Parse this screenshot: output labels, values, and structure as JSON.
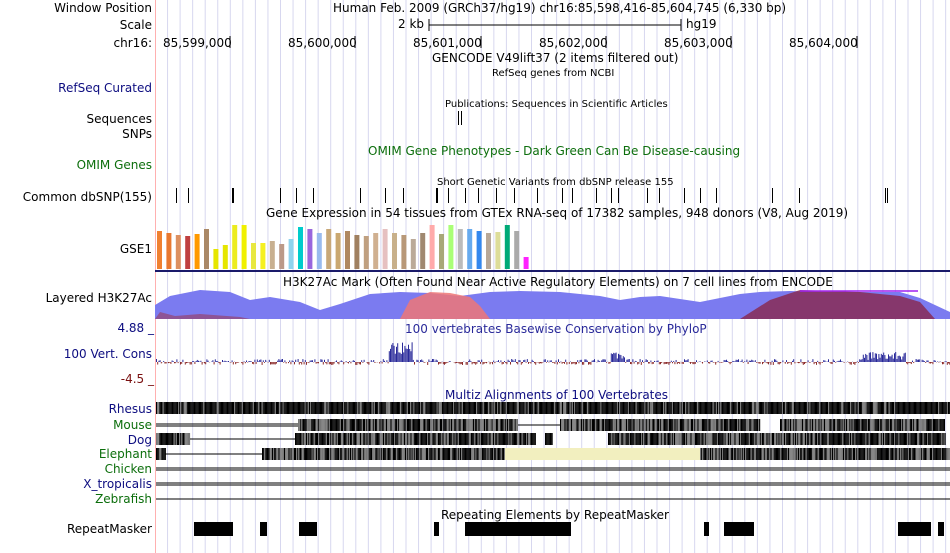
{
  "header": {
    "window_position_label": "Window Position",
    "window_position_value": "Human Feb. 2009 (GRCh37/hg19)   chr16:85,598,416-85,604,745 (6,330 bp)",
    "scale_label": "Scale",
    "scale_value": "2 kb",
    "scale_assembly": "hg19",
    "chrom_label": "chr16:",
    "ticks": [
      "85,599,000",
      "85,600,000",
      "85,601,000",
      "85,602,000",
      "85,603,000",
      "85,604,000"
    ]
  },
  "tracks": {
    "gencode_title": "GENCODE V49lift37 (2 items filtered out)",
    "refseq_title": "RefSeq genes from NCBI",
    "refseq_label": "RefSeq Curated",
    "publications_title": "Publications: Sequences in Scientific Articles",
    "sequences_label": "Sequences",
    "snps_label": "SNPs",
    "omim_title": "OMIM Gene Phenotypes - Dark Green Can Be Disease-causing",
    "omim_label": "OMIM Genes",
    "dbsnp_title": "Short Genetic Variants from dbSNP release 155",
    "dbsnp_label": "Common dbSNP(155)",
    "gtex_title": "Gene Expression in 54 tissues from GTEx RNA-seq of 17382 samples, 948 donors (V8, Aug 2019)",
    "gtex_label": "GSE1",
    "h3k27ac_title": "H3K27Ac Mark (Often Found Near Active Regulatory Elements) on 7 cell lines from ENCODE",
    "h3k27ac_label": "Layered H3K27Ac",
    "phylop_title": "100 vertebrates Basewise Conservation by PhyloP",
    "phylop_label": "100 Vert. Cons",
    "phylop_max": "4.88 _",
    "phylop_min": "-4.5 _",
    "multiz_title": "Multiz Alignments of 100 Vertebrates",
    "species": [
      "Rhesus",
      "Mouse",
      "Dog",
      "Elephant",
      "Chicken",
      "X_tropicalis",
      "Zebrafish"
    ],
    "repeat_title": "Repeating Elements by RepeatMasker",
    "repeat_label": "RepeatMasker"
  },
  "colors": {
    "label_blue": "#0d0d80",
    "label_green": "#0c6e0c",
    "omim_title": "#0c6e0c",
    "phylop_title": "#2a2a9a",
    "h3k27ac_blue": "#7b7bf0",
    "h3k27ac_maroon": "#8a2040",
    "phylop_pos": "#2a2a9a",
    "phylop_neg": "#8b2a2a",
    "elephant_gap": "#f2efbf"
  },
  "gtex_bars": [
    {
      "color": "#f08030",
      "value": 38
    },
    {
      "color": "#e87830",
      "value": 36
    },
    {
      "color": "#dd9060",
      "value": 34
    },
    {
      "color": "#c04040",
      "value": 33
    },
    {
      "color": "#ff9900",
      "value": 35
    },
    {
      "color": "#aa8866",
      "value": 40
    },
    {
      "color": "#e6e600",
      "value": 20
    },
    {
      "color": "#e6e600",
      "value": 24
    },
    {
      "color": "#ecec20",
      "value": 44
    },
    {
      "color": "#f0f000",
      "value": 44
    },
    {
      "color": "#e8e840",
      "value": 26
    },
    {
      "color": "#f5f020",
      "value": 26
    },
    {
      "color": "#c8b090",
      "value": 28
    },
    {
      "color": "#bb9988",
      "value": 25
    },
    {
      "color": "#8fd3ee",
      "value": 30
    },
    {
      "color": "#00cccc",
      "value": 42
    },
    {
      "color": "#9966dd",
      "value": 40
    },
    {
      "color": "#99bbee",
      "value": 36
    },
    {
      "color": "#c8a878",
      "value": 40
    },
    {
      "color": "#caa870",
      "value": 36
    },
    {
      "color": "#b08860",
      "value": 38
    },
    {
      "color": "#a08060",
      "value": 34
    },
    {
      "color": "#c0a080",
      "value": 33
    },
    {
      "color": "#d0b090",
      "value": 36
    },
    {
      "color": "#e6c0c0",
      "value": 40
    },
    {
      "color": "#c8b08a",
      "value": 36
    },
    {
      "color": "#b89878",
      "value": 34
    },
    {
      "color": "#bbaa99",
      "value": 30
    },
    {
      "color": "#a08870",
      "value": 36
    },
    {
      "color": "#ffaaaa",
      "value": 44
    },
    {
      "color": "#a8a878",
      "value": 35
    },
    {
      "color": "#aaff77",
      "value": 44
    },
    {
      "color": "#bbbbbb",
      "value": 40
    },
    {
      "color": "#66aaee",
      "value": 40
    },
    {
      "color": "#3388ee",
      "value": 38
    },
    {
      "color": "#b8a898",
      "value": 36
    },
    {
      "color": "#dddd99",
      "value": 37
    },
    {
      "color": "#00aa77",
      "value": 44
    },
    {
      "color": "#aaaaaa",
      "value": 38
    },
    {
      "color": "#ff22ff",
      "value": 12
    }
  ]
}
